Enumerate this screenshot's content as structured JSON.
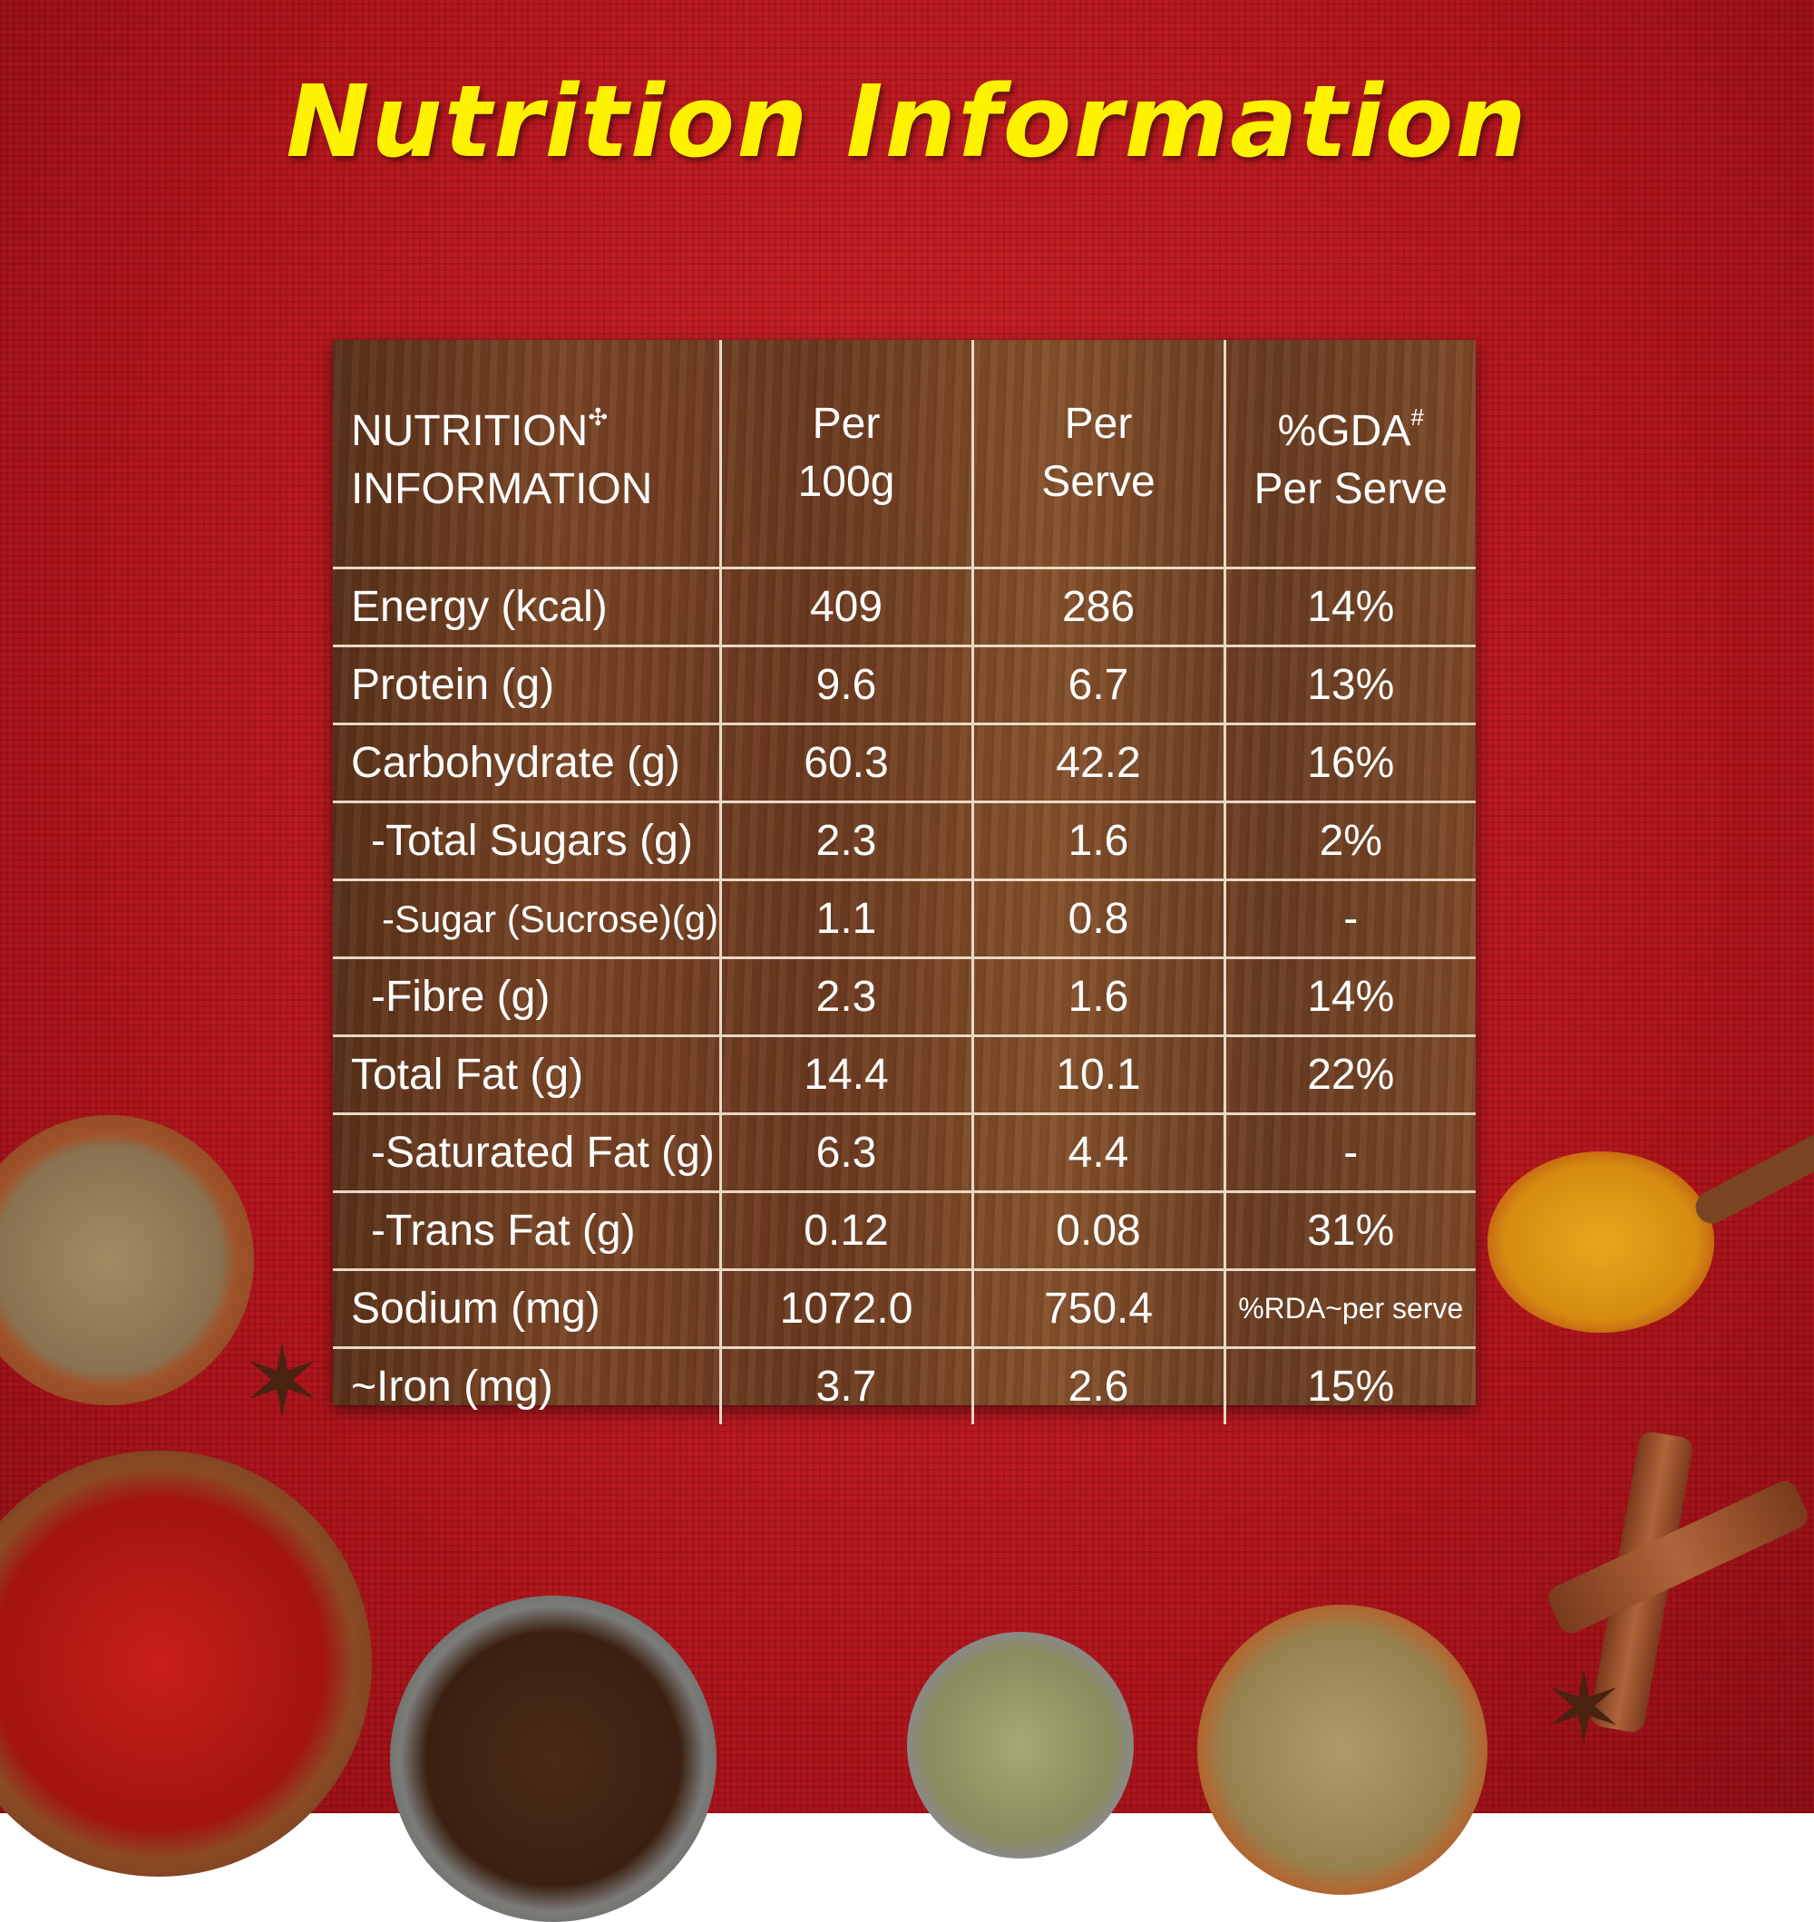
{
  "title": "Nutrition Information",
  "header": {
    "col0_line1": "NUTRITION",
    "col0_mark": "✣",
    "col0_line2": "INFORMATION",
    "col1_line1": "Per",
    "col1_line2": "100g",
    "col2_line1": "Per",
    "col2_line2": "Serve",
    "col3_line1": "%GDA",
    "col3_mark": "#",
    "col3_line2": "Per Serve"
  },
  "rows": [
    {
      "name": "Energy (kcal)",
      "per100g": "409",
      "perServe": "286",
      "gda": "14%"
    },
    {
      "name": "Protein (g)",
      "per100g": "9.6",
      "perServe": "6.7",
      "gda": "13%"
    },
    {
      "name": "Carbohydrate (g)",
      "per100g": "60.3",
      "perServe": "42.2",
      "gda": "16%"
    },
    {
      "name": "-Total Sugars (g)",
      "per100g": "2.3",
      "perServe": "1.6",
      "gda": "2%"
    },
    {
      "name": "-Sugar (Sucrose)(g)",
      "per100g": "1.1",
      "perServe": "0.8",
      "gda": "-"
    },
    {
      "name": "-Fibre (g)",
      "per100g": "2.3",
      "perServe": "1.6",
      "gda": "14%"
    },
    {
      "name": "Total Fat (g)",
      "per100g": "14.4",
      "perServe": "10.1",
      "gda": "22%"
    },
    {
      "name": "-Saturated Fat (g)",
      "per100g": "6.3",
      "perServe": "4.4",
      "gda": "-"
    },
    {
      "name": "-Trans Fat (g)",
      "per100g": "0.12",
      "perServe": "0.08",
      "gda": "31%"
    },
    {
      "name": "Sodium (mg)",
      "per100g": "1072.0",
      "perServe": "750.4",
      "gda": "%RDA~per serve"
    },
    {
      "name": "~Iron (mg)",
      "per100g": "3.7",
      "perServe": "2.6",
      "gda": "15%"
    }
  ],
  "icons": [
    "cumin-bowl",
    "chili-bowl",
    "clove-bowl",
    "fennel-bowl",
    "coriander-bowl",
    "turmeric-spoon",
    "cinnamon-sticks",
    "star-anise",
    "bay-leaf"
  ],
  "colors": {
    "background": "#b5161d",
    "title": "#fff200",
    "text": "#ffffff",
    "grid": "#e8d9c4",
    "board": "#6b3a1f"
  }
}
